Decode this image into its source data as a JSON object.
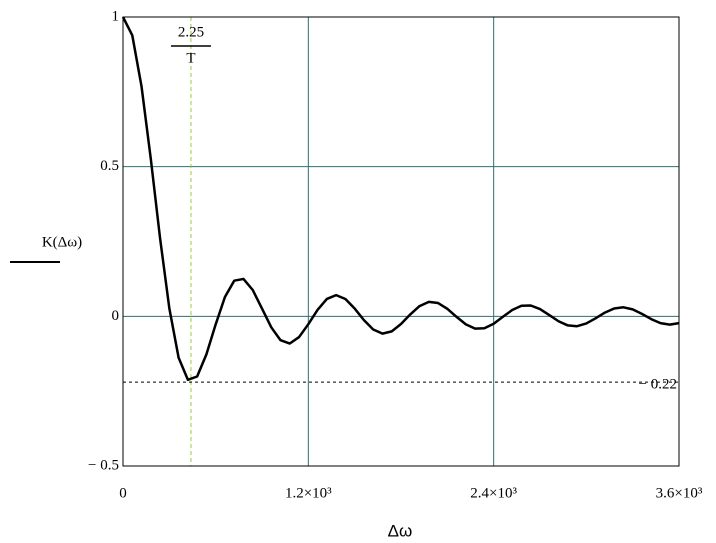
{
  "chart_data": {
    "type": "line",
    "y_label": "K(Δω)",
    "x_label": "Δω",
    "color": "#000000",
    "grid": true,
    "grid_color": "#2f6f6f",
    "xlim": [
      0,
      3600
    ],
    "ylim": [
      -0.5,
      1
    ],
    "xticks": [
      0,
      {
        "value": 1200,
        "label": "1.2×10³"
      },
      {
        "value": 2400,
        "label": "2.4×10³"
      },
      {
        "value": 3600,
        "label": "3.6×10³"
      }
    ],
    "yticks": [
      {
        "value": -0.5,
        "label": "− 0.5"
      },
      0,
      0.5,
      1
    ],
    "vmarker": {
      "value": 440,
      "numerator": "2.25",
      "denominator": "T",
      "color": "#9acd32"
    },
    "hmarker": {
      "value": -0.22,
      "label": "− 0.22"
    },
    "x": [
      0,
      60,
      120,
      180,
      240,
      300,
      360,
      420,
      480,
      540,
      600,
      660,
      720,
      780,
      840,
      900,
      960,
      1020,
      1080,
      1140,
      1200,
      1260,
      1320,
      1380,
      1440,
      1500,
      1560,
      1620,
      1680,
      1740,
      1800,
      1860,
      1920,
      1980,
      2040,
      2100,
      2160,
      2220,
      2280,
      2340,
      2400,
      2460,
      2520,
      2580,
      2640,
      2700,
      2760,
      2820,
      2880,
      2940,
      3000,
      3060,
      3120,
      3180,
      3240,
      3300,
      3360,
      3420,
      3480,
      3540,
      3600
    ],
    "values": [
      1,
      0.939,
      0.768,
      0.526,
      0.261,
      0.027,
      -0.138,
      -0.212,
      -0.201,
      -0.127,
      -0.027,
      0.0645,
      0.119,
      0.125,
      0.088,
      0.026,
      -0.0367,
      -0.0798,
      -0.0908,
      -0.0693,
      -0.0262,
      0.0219,
      0.0581,
      0.0709,
      0.058,
      0.026,
      -0.0127,
      -0.0441,
      -0.0578,
      -0.0503,
      -0.0256,
      0.0064,
      0.0342,
      0.0483,
      0.0445,
      0.0252,
      -0.0019,
      -0.0268,
      -0.041,
      -0.0399,
      -0.0248,
      -0.0016,
      0.021,
      0.0352,
      0.0362,
      0.0243,
      0.0043,
      -0.0164,
      -0.0304,
      -0.033,
      -0.0238,
      -0.0065,
      0.0125,
      0.0263,
      0.0302,
      0.0232,
      0.0082,
      -0.0092,
      -0.0227,
      -0.0277,
      -0.0226
    ]
  }
}
